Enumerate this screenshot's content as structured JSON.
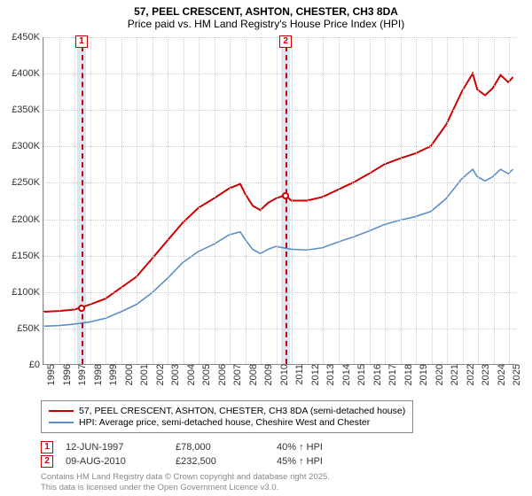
{
  "title": {
    "line1": "57, PEEL CRESCENT, ASHTON, CHESTER, CH3 8DA",
    "line2": "Price paid vs. HM Land Registry's House Price Index (HPI)"
  },
  "chart": {
    "type": "line",
    "x_domain": [
      1995,
      2025.5
    ],
    "y_domain": [
      0,
      450000
    ],
    "y_ticks": [
      0,
      50000,
      100000,
      150000,
      200000,
      250000,
      300000,
      350000,
      400000,
      450000
    ],
    "y_tick_labels": [
      "£0",
      "£50K",
      "£100K",
      "£150K",
      "£200K",
      "£250K",
      "£300K",
      "£350K",
      "£400K",
      "£450K"
    ],
    "x_ticks": [
      1995,
      1996,
      1997,
      1998,
      1999,
      2000,
      2001,
      2002,
      2003,
      2004,
      2005,
      2006,
      2007,
      2008,
      2009,
      2010,
      2011,
      2012,
      2013,
      2014,
      2015,
      2016,
      2017,
      2018,
      2019,
      2020,
      2021,
      2022,
      2023,
      2024,
      2025
    ],
    "background_color": "#ffffff",
    "grid_color": "#cccccc",
    "axis_color": "#888888",
    "tick_fontsize": 11,
    "series": [
      {
        "name": "price_paid",
        "color": "#cc0000",
        "width": 2,
        "points": [
          [
            1995,
            72000
          ],
          [
            1996,
            73000
          ],
          [
            1997,
            75000
          ],
          [
            1997.45,
            78000
          ],
          [
            1998,
            82000
          ],
          [
            1999,
            90000
          ],
          [
            2000,
            105000
          ],
          [
            2001,
            120000
          ],
          [
            2002,
            145000
          ],
          [
            2003,
            170000
          ],
          [
            2004,
            195000
          ],
          [
            2005,
            215000
          ],
          [
            2006,
            228000
          ],
          [
            2007,
            242000
          ],
          [
            2007.7,
            248000
          ],
          [
            2008,
            235000
          ],
          [
            2008.5,
            218000
          ],
          [
            2009,
            212000
          ],
          [
            2009.5,
            222000
          ],
          [
            2010,
            228000
          ],
          [
            2010.6,
            232500
          ],
          [
            2011,
            225000
          ],
          [
            2012,
            225000
          ],
          [
            2013,
            230000
          ],
          [
            2014,
            240000
          ],
          [
            2015,
            250000
          ],
          [
            2016,
            262000
          ],
          [
            2017,
            275000
          ],
          [
            2018,
            283000
          ],
          [
            2019,
            290000
          ],
          [
            2020,
            300000
          ],
          [
            2021,
            330000
          ],
          [
            2022,
            375000
          ],
          [
            2022.7,
            400000
          ],
          [
            2023,
            378000
          ],
          [
            2023.5,
            370000
          ],
          [
            2024,
            380000
          ],
          [
            2024.5,
            398000
          ],
          [
            2025,
            388000
          ],
          [
            2025.3,
            395000
          ]
        ]
      },
      {
        "name": "hpi",
        "color": "#5b8fc7",
        "width": 1.6,
        "points": [
          [
            1995,
            52000
          ],
          [
            1996,
            53000
          ],
          [
            1997,
            55000
          ],
          [
            1998,
            58000
          ],
          [
            1999,
            63000
          ],
          [
            2000,
            72000
          ],
          [
            2001,
            82000
          ],
          [
            2002,
            98000
          ],
          [
            2003,
            118000
          ],
          [
            2004,
            140000
          ],
          [
            2005,
            155000
          ],
          [
            2006,
            165000
          ],
          [
            2007,
            178000
          ],
          [
            2007.7,
            182000
          ],
          [
            2008,
            172000
          ],
          [
            2008.5,
            158000
          ],
          [
            2009,
            152000
          ],
          [
            2009.5,
            158000
          ],
          [
            2010,
            162000
          ],
          [
            2011,
            158000
          ],
          [
            2012,
            157000
          ],
          [
            2013,
            160000
          ],
          [
            2014,
            168000
          ],
          [
            2015,
            175000
          ],
          [
            2016,
            183000
          ],
          [
            2017,
            192000
          ],
          [
            2018,
            198000
          ],
          [
            2019,
            203000
          ],
          [
            2020,
            210000
          ],
          [
            2021,
            228000
          ],
          [
            2022,
            255000
          ],
          [
            2022.7,
            268000
          ],
          [
            2023,
            258000
          ],
          [
            2023.5,
            252000
          ],
          [
            2024,
            258000
          ],
          [
            2024.5,
            268000
          ],
          [
            2025,
            262000
          ],
          [
            2025.3,
            268000
          ]
        ]
      }
    ],
    "markers": [
      {
        "num": "1",
        "x": 1997.45,
        "y": 78000,
        "band_width_years": 0.6
      },
      {
        "num": "2",
        "x": 2010.6,
        "y": 232500,
        "band_width_years": 0.6
      }
    ]
  },
  "legend": {
    "items": [
      {
        "color": "#cc0000",
        "label": "57, PEEL CRESCENT, ASHTON, CHESTER, CH3 8DA (semi-detached house)"
      },
      {
        "color": "#5b8fc7",
        "label": "HPI: Average price, semi-detached house, Cheshire West and Chester"
      }
    ]
  },
  "annotations": [
    {
      "num": "1",
      "date": "12-JUN-1997",
      "price": "£78,000",
      "delta": "40% ↑ HPI"
    },
    {
      "num": "2",
      "date": "09-AUG-2010",
      "price": "£232,500",
      "delta": "45% ↑ HPI"
    }
  ],
  "footer": {
    "line1": "Contains HM Land Registry data © Crown copyright and database right 2025.",
    "line2": "This data is licensed under the Open Government Licence v3.0."
  }
}
